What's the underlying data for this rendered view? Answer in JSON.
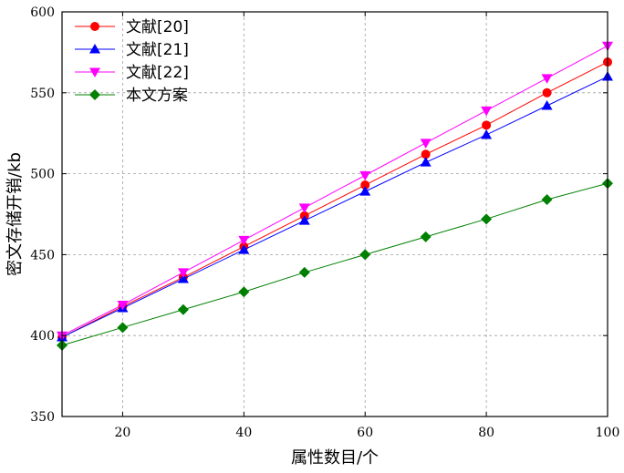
{
  "chart_data": {
    "type": "line",
    "xlabel": "属性数目/个",
    "ylabel": "密文存储开销/kb",
    "xlim": [
      10,
      100
    ],
    "ylim": [
      350,
      600
    ],
    "xticks": [
      20,
      40,
      60,
      80,
      100
    ],
    "yticks": [
      350,
      400,
      450,
      500,
      550,
      600
    ],
    "grid": true,
    "legend_position": "top-left",
    "x": [
      10,
      20,
      30,
      40,
      50,
      60,
      70,
      80,
      90,
      100
    ],
    "series": [
      {
        "name": "文献[20]",
        "color": "#ff0000",
        "marker": "circle",
        "values": [
          399,
          418,
          436,
          455,
          474,
          493,
          512,
          530,
          550,
          569
        ]
      },
      {
        "name": "文献[21]",
        "color": "#0000ff",
        "marker": "triangle-up",
        "values": [
          399,
          417,
          435,
          453,
          471,
          489,
          507,
          524,
          542,
          560
        ]
      },
      {
        "name": "文献[22]",
        "color": "#ff00ff",
        "marker": "triangle-down",
        "values": [
          400,
          419,
          439,
          459,
          479,
          499,
          519,
          539,
          559,
          579
        ]
      },
      {
        "name": "本文方案",
        "color": "#008000",
        "marker": "diamond",
        "values": [
          394,
          405,
          416,
          427,
          439,
          450,
          461,
          472,
          484,
          494
        ]
      }
    ]
  }
}
